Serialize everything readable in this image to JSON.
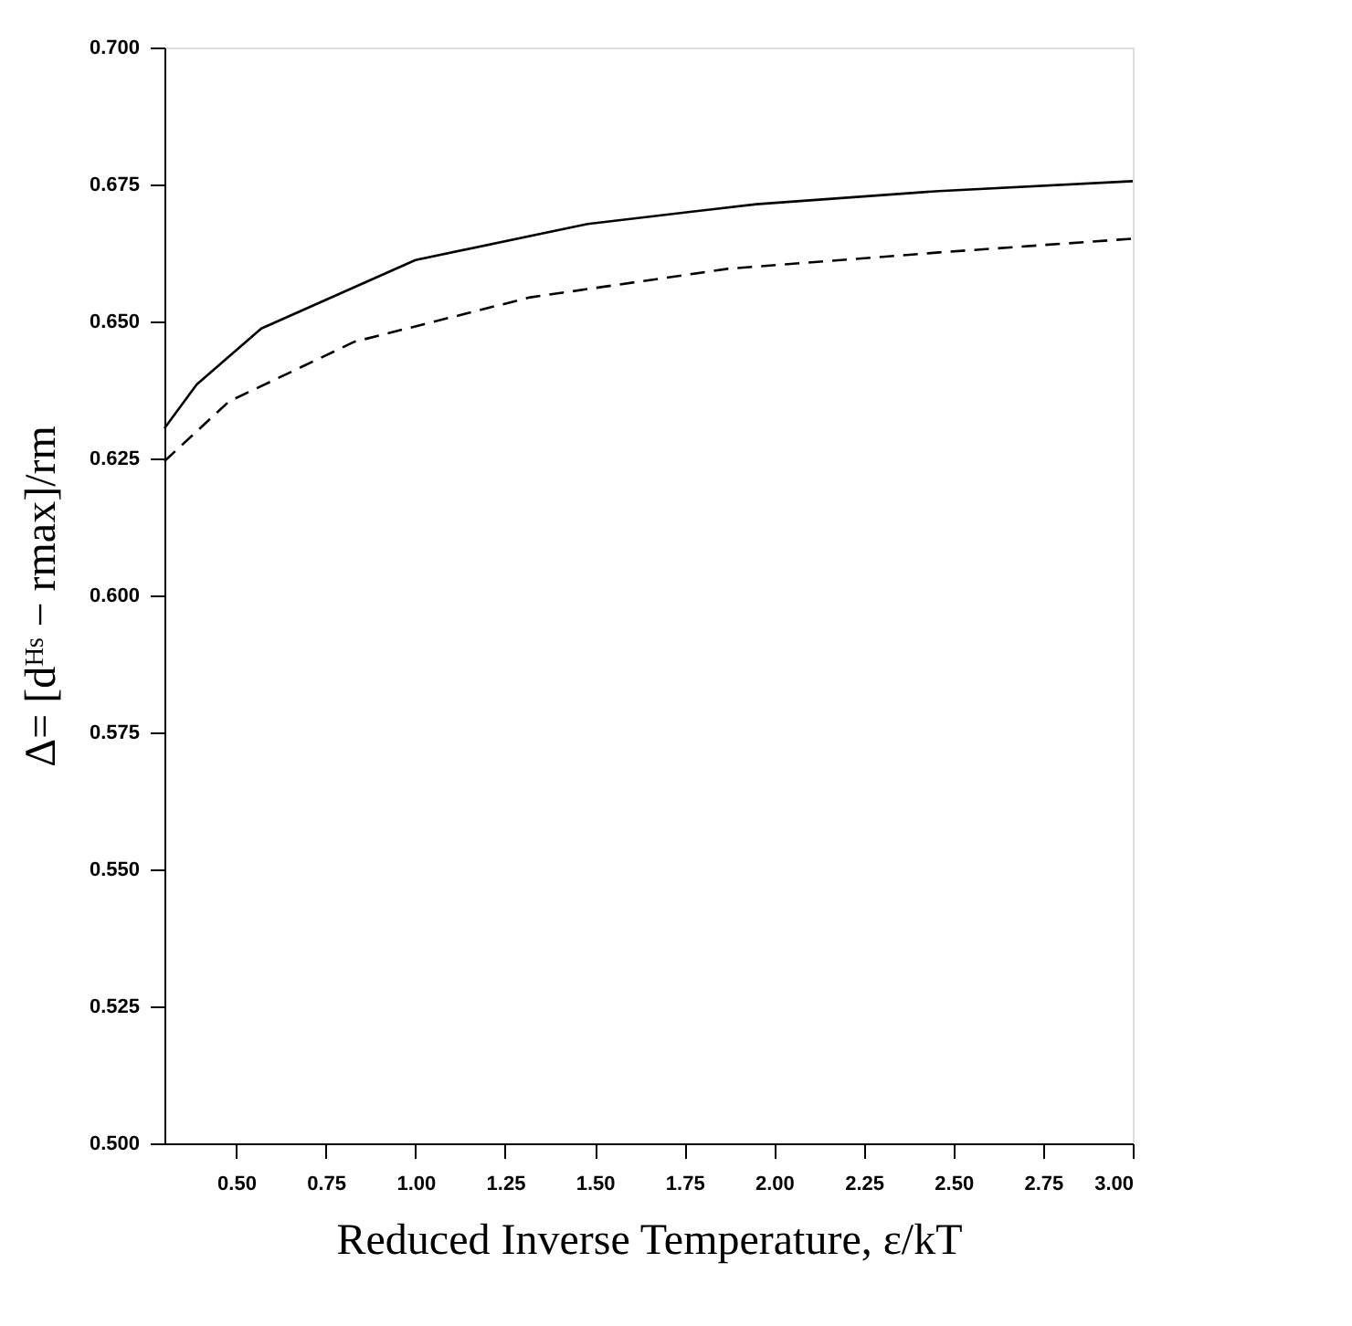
{
  "chart_data": {
    "type": "line",
    "xlabel": "Reduced Inverse Temperature, ε/kT",
    "ylabel": "Δ= [dᴴˢ − rmax]/rm",
    "xlim": [
      0.3,
      3.0
    ],
    "ylim": [
      0.5,
      0.7
    ],
    "xticks": [
      {
        "value": 0.5,
        "label": "0.50"
      },
      {
        "value": 0.75,
        "label": "0.75"
      },
      {
        "value": 1.0,
        "label": "1.00"
      },
      {
        "value": 1.25,
        "label": "1.25"
      },
      {
        "value": 1.5,
        "label": "1.50"
      },
      {
        "value": 1.75,
        "label": "1.75"
      },
      {
        "value": 2.0,
        "label": "2.00"
      },
      {
        "value": 2.25,
        "label": "2.25"
      },
      {
        "value": 2.5,
        "label": "2.50"
      },
      {
        "value": 2.75,
        "label": "2.75"
      },
      {
        "value": 3.0,
        "label": "3.00"
      }
    ],
    "yticks": [
      {
        "value": 0.5,
        "label": "0.500"
      },
      {
        "value": 0.525,
        "label": "0.525"
      },
      {
        "value": 0.55,
        "label": "0.550"
      },
      {
        "value": 0.575,
        "label": "0.575"
      },
      {
        "value": 0.6,
        "label": "0.600"
      },
      {
        "value": 0.625,
        "label": "0.625"
      },
      {
        "value": 0.65,
        "label": "0.650"
      },
      {
        "value": 0.675,
        "label": "0.675"
      },
      {
        "value": 0.7,
        "label": "0.700"
      }
    ],
    "grid": false,
    "series": [
      {
        "color": "#000000",
        "line_style": "solid",
        "x": [
          0.3,
          0.39,
          0.57,
          1.0,
          1.48,
          1.95,
          2.46,
          3.0
        ],
        "values": [
          0.6305,
          0.6385,
          0.6487,
          0.6612,
          0.6678,
          0.6714,
          0.6738,
          0.6756
        ]
      },
      {
        "color": "#000000",
        "line_style": "dashed",
        "x": [
          0.3,
          0.48,
          0.83,
          1.32,
          1.87,
          2.46,
          3.0
        ],
        "values": [
          0.6245,
          0.6354,
          0.6463,
          0.6544,
          0.6596,
          0.6626,
          0.6651
        ]
      }
    ]
  }
}
